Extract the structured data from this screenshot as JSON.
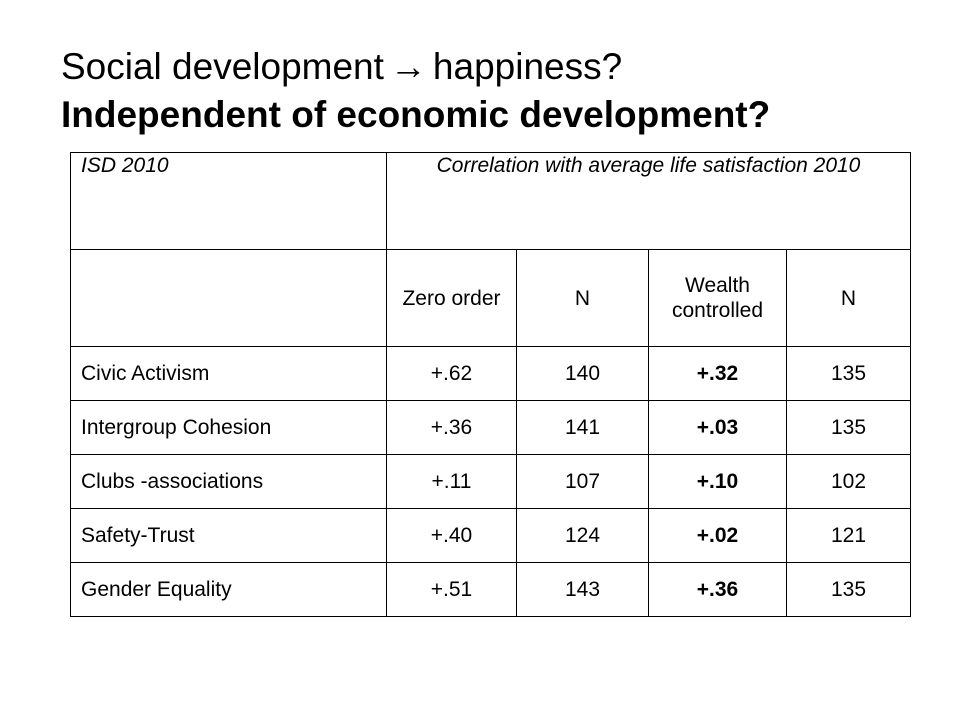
{
  "title": {
    "line1_before": "Social development",
    "arrow": "→",
    "line1_after": "happiness?",
    "line2": "Independent of economic development?"
  },
  "table": {
    "header": {
      "isd": "ISD 2010",
      "correlation": "Correlation with average life satisfaction 2010"
    },
    "subheader": {
      "blank": "",
      "zero_order": "Zero order",
      "n1": "N",
      "wealth_controlled": "Wealth controlled",
      "n2": "N"
    },
    "rows": [
      {
        "label": "Civic Activism",
        "zero_order": "+.62",
        "n1": "140",
        "wealth": "+.32",
        "n2": "135"
      },
      {
        "label": "Intergroup Cohesion",
        "zero_order": "+.36",
        "n1": "141",
        "wealth": "+.03",
        "n2": "135"
      },
      {
        "label": "Clubs -associations",
        "zero_order": "+.11",
        "n1": "107",
        "wealth": "+.10",
        "n2": "102"
      },
      {
        "label": "Safety-Trust",
        "zero_order": "+.40",
        "n1": "124",
        "wealth": "+.02",
        "n2": "121"
      },
      {
        "label": "Gender Equality",
        "zero_order": "+.51",
        "n1": "143",
        "wealth": "+.36",
        "n2": "135"
      }
    ]
  }
}
